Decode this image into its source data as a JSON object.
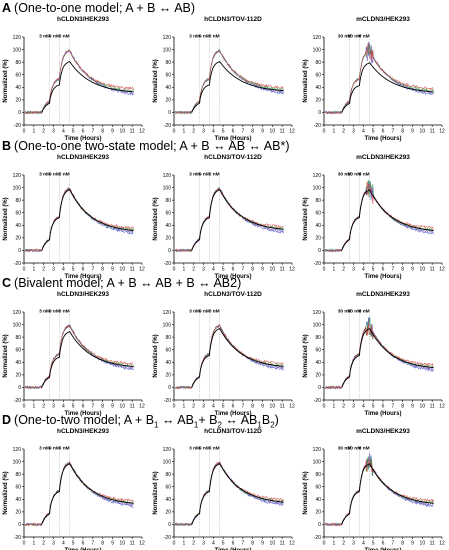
{
  "sections": [
    {
      "letter": "A",
      "title_parts": [
        {
          "t": "(One-to-one model; A + B ↔ AB)"
        }
      ],
      "panels": [
        {
          "title": "hCLDN3/HEK293",
          "conc_labels": [
            "3 nM",
            "9 nM",
            "0 nM"
          ]
        },
        {
          "title": "hCLDN3/TOV-112D",
          "conc_labels": [
            "3 nM",
            "9 nM",
            "0 nM"
          ]
        },
        {
          "title": "mCLDN3/HEK293",
          "conc_labels": [
            "30 nM",
            "90 nM",
            "0 nM"
          ]
        }
      ]
    },
    {
      "letter": "B",
      "title_parts": [
        {
          "t": "(One-to-one two-state model; A + B ↔ AB ↔ AB*)"
        }
      ],
      "panels": [
        {
          "title": "hCLDN3/HEK293",
          "conc_labels": [
            "3 nM",
            "9 nM",
            "0 nM"
          ]
        },
        {
          "title": "hCLDN3/TOV-112D",
          "conc_labels": [
            "3 nM",
            "9 nM",
            "0 nM"
          ]
        },
        {
          "title": "mCLDN3/HEK293",
          "conc_labels": [
            "30 nM",
            "90 nM",
            "0 nM"
          ]
        }
      ]
    },
    {
      "letter": "C",
      "title_parts": [
        {
          "t": "(Bivalent model; A + B ↔ AB + B ↔ AB2)"
        }
      ],
      "panels": [
        {
          "title": "hCLDN3/HEK293",
          "conc_labels": [
            "3 nM",
            "9 nM",
            "0 nM"
          ]
        },
        {
          "title": "hCLDN3/TOV-112D",
          "conc_labels": [
            "3 nM",
            "9 nM",
            "0 nM"
          ]
        },
        {
          "title": "mCLDN3/HEK293",
          "conc_labels": [
            "30 nM",
            "90 nM",
            "0 nM"
          ]
        }
      ]
    },
    {
      "letter": "D",
      "title_parts": [
        {
          "t": "(One-to-two model; A + B"
        },
        {
          "t": "1",
          "sub": true
        },
        {
          "t": " ↔  AB"
        },
        {
          "t": "1",
          "sub": true
        },
        {
          "t": "+ B"
        },
        {
          "t": "2",
          "sub": true
        },
        {
          "t": " ↔ AB"
        },
        {
          "t": "1",
          "sub": true
        },
        {
          "t": "B"
        },
        {
          "t": "2",
          "sub": true
        },
        {
          "t": ")"
        }
      ],
      "panels": [
        {
          "title": "hCLDN3/HEK293",
          "conc_labels": [
            "3 nM",
            "9 nM",
            "0 nM"
          ]
        },
        {
          "title": "hCLDN3/TOV-112D",
          "conc_labels": [
            "3 nM",
            "9 nM",
            "0 nM"
          ]
        },
        {
          "title": "mCLDN3/HEK293",
          "conc_labels": [
            "30 nM",
            "90 nM",
            "0 nM"
          ]
        }
      ]
    }
  ],
  "chart_data": {
    "type": "line",
    "xlabel": "Time (Hours)",
    "ylabel": "Normalized (%)",
    "xlim": [
      0,
      12
    ],
    "ylim": [
      -20,
      120
    ],
    "xticks": [
      0,
      1,
      2,
      3,
      4,
      5,
      6,
      7,
      8,
      9,
      10,
      11,
      12
    ],
    "yticks": [
      -20,
      0,
      20,
      40,
      60,
      80,
      100,
      120
    ],
    "injection_times_hours": [
      2.6,
      3.6,
      4.6
    ],
    "series_colors": {
      "measured_replicates": [
        "#3b4fc4",
        "#7a4fb8",
        "#2e9e3c",
        "#d33a3a"
      ],
      "model_fit": "#000000"
    },
    "panels": [
      {
        "section": "A",
        "cell_line": "hCLDN3/HEK293",
        "peak": 100,
        "fit_peak": 82,
        "end_value": 30
      },
      {
        "section": "A",
        "cell_line": "hCLDN3/TOV-112D",
        "peak": 100,
        "fit_peak": 82,
        "end_value": 32
      },
      {
        "section": "A",
        "cell_line": "mCLDN3/HEK293",
        "peak": 100,
        "fit_peak": 80,
        "end_value": 30
      },
      {
        "section": "B",
        "cell_line": "hCLDN3/HEK293",
        "peak": 100,
        "fit_peak": 98,
        "end_value": 28
      },
      {
        "section": "B",
        "cell_line": "hCLDN3/TOV-112D",
        "peak": 100,
        "fit_peak": 98,
        "end_value": 30
      },
      {
        "section": "B",
        "cell_line": "mCLDN3/HEK293",
        "peak": 100,
        "fit_peak": 98,
        "end_value": 28
      },
      {
        "section": "C",
        "cell_line": "hCLDN3/HEK293",
        "peak": 100,
        "fit_peak": 90,
        "end_value": 30
      },
      {
        "section": "C",
        "cell_line": "hCLDN3/TOV-112D",
        "peak": 100,
        "fit_peak": 95,
        "end_value": 30
      },
      {
        "section": "C",
        "cell_line": "mCLDN3/HEK293",
        "peak": 100,
        "fit_peak": 95,
        "end_value": 28
      },
      {
        "section": "D",
        "cell_line": "hCLDN3/HEK293",
        "peak": 100,
        "fit_peak": 98,
        "end_value": 30
      },
      {
        "section": "D",
        "cell_line": "hCLDN3/TOV-112D",
        "peak": 100,
        "fit_peak": 98,
        "end_value": 32
      },
      {
        "section": "D",
        "cell_line": "mCLDN3/HEK293",
        "peak": 100,
        "fit_peak": 98,
        "end_value": 30
      }
    ]
  }
}
